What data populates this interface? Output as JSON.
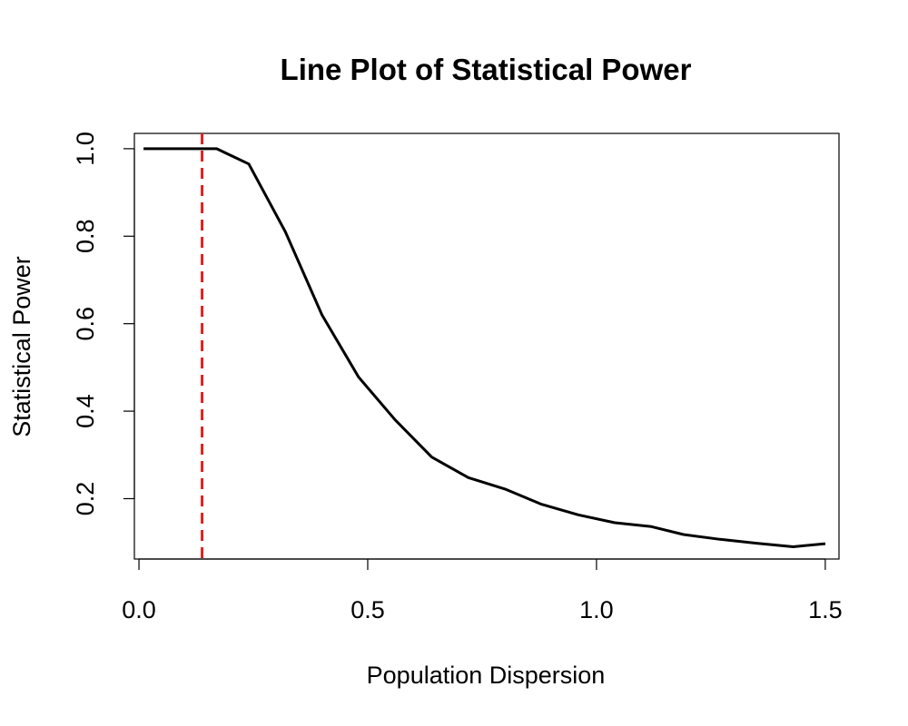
{
  "chart_data": {
    "type": "line",
    "title": "Line Plot of Statistical Power",
    "xlabel": "Population Dispersion",
    "ylabel": "Statistical Power",
    "xlim": [
      -0.01,
      1.53
    ],
    "ylim": [
      0.062,
      1.035
    ],
    "x_ticks": [
      0.0,
      0.5,
      1.0,
      1.5
    ],
    "x_tick_labels": [
      "0.0",
      "0.5",
      "1.0",
      "1.5"
    ],
    "y_ticks": [
      0.2,
      0.4,
      0.6,
      0.8,
      1.0
    ],
    "y_tick_labels": [
      "0.2",
      "0.4",
      "0.6",
      "0.8",
      "1.0"
    ],
    "grid": false,
    "series": [
      {
        "color": "#000000",
        "x": [
          0.01,
          0.09,
          0.17,
          0.24,
          0.32,
          0.4,
          0.48,
          0.56,
          0.64,
          0.72,
          0.8,
          0.88,
          0.96,
          1.04,
          1.12,
          1.19,
          1.27,
          1.35,
          1.43,
          1.5
        ],
        "y": [
          1.0,
          1.0,
          1.0,
          0.965,
          0.81,
          0.62,
          0.478,
          0.38,
          0.295,
          0.248,
          0.222,
          0.187,
          0.163,
          0.145,
          0.136,
          0.118,
          0.107,
          0.098,
          0.09,
          0.097
        ]
      }
    ],
    "reference_lines": [
      {
        "orientation": "vertical",
        "x": 0.138,
        "color": "#e0201b",
        "style": "dashed"
      }
    ]
  }
}
